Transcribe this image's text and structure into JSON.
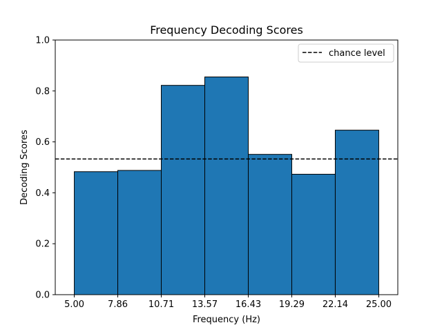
{
  "chart_data": {
    "type": "bar",
    "title": "Frequency Decoding Scores",
    "xlabel": "Frequency (Hz)",
    "ylabel": "Decoding Scores",
    "bin_edges": [
      5.0,
      7.857,
      10.714,
      13.571,
      16.429,
      19.286,
      22.143,
      25.0
    ],
    "x_tick_labels": [
      "5.00",
      "7.86",
      "10.71",
      "13.57",
      "16.43",
      "19.29",
      "22.14",
      "25.00"
    ],
    "values": [
      0.483,
      0.488,
      0.822,
      0.855,
      0.551,
      0.473,
      0.646
    ],
    "xlim": [
      3.75,
      26.25
    ],
    "ylim": [
      0.0,
      1.0
    ],
    "y_ticks": [
      0.0,
      0.2,
      0.4,
      0.6,
      0.8,
      1.0
    ],
    "y_tick_labels": [
      "0.0",
      "0.2",
      "0.4",
      "0.6",
      "0.8",
      "1.0"
    ],
    "bar_color": "#1f77b4",
    "bar_edge_color": "#000000",
    "reference_line": {
      "label": "chance level",
      "y": 0.533,
      "style": "dashed",
      "color": "#000000"
    },
    "legend": {
      "position": "top-right",
      "entries": [
        "chance level"
      ]
    },
    "grid": false
  }
}
